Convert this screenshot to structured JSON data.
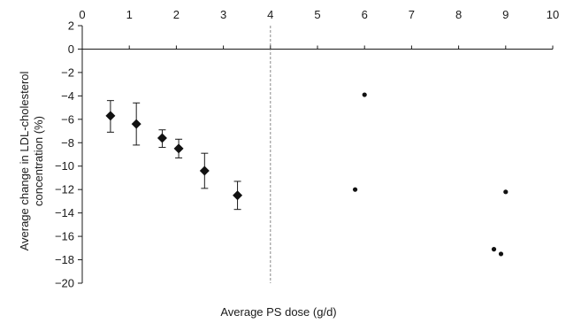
{
  "chart_data": {
    "type": "scatter",
    "title": "",
    "xlabel": "Average PS dose (g/d)",
    "ylabel_lines": [
      "Average change in LDL-cholesterol",
      "concentration (%)"
    ],
    "xlim": [
      0,
      10
    ],
    "ylim": [
      -20,
      2
    ],
    "x_ticks": [
      0,
      1,
      2,
      3,
      4,
      5,
      6,
      7,
      8,
      9,
      10
    ],
    "y_ticks": [
      2,
      0,
      -2,
      -4,
      -6,
      -8,
      -10,
      -12,
      -14,
      -16,
      -18,
      -20
    ],
    "y_tick_labels": [
      "2",
      "0",
      "−2",
      "−4",
      "−6",
      "−8",
      "−10",
      "−12",
      "−14",
      "−16",
      "−18",
      "−20"
    ],
    "x_axis_position": "top",
    "grid": false,
    "reference_line_x": 4,
    "series": [
      {
        "marker": "diamond",
        "points": [
          {
            "x": 0.6,
            "y": -5.7,
            "err_low": -7.1,
            "err_high": -4.4
          },
          {
            "x": 1.15,
            "y": -6.4,
            "err_low": -8.2,
            "err_high": -4.6
          },
          {
            "x": 1.7,
            "y": -7.6,
            "err_low": -8.4,
            "err_high": -6.9
          },
          {
            "x": 2.05,
            "y": -8.5,
            "err_low": -9.3,
            "err_high": -7.7
          },
          {
            "x": 2.6,
            "y": -10.4,
            "err_low": -11.9,
            "err_high": -8.9
          },
          {
            "x": 3.3,
            "y": -12.5,
            "err_low": -13.7,
            "err_high": -11.3
          }
        ]
      },
      {
        "marker": "dot",
        "points": [
          {
            "x": 6.0,
            "y": -3.9
          },
          {
            "x": 5.8,
            "y": -12.0
          },
          {
            "x": 9.0,
            "y": -12.2
          },
          {
            "x": 8.75,
            "y": -17.1
          },
          {
            "x": 8.9,
            "y": -17.5
          }
        ]
      }
    ]
  }
}
